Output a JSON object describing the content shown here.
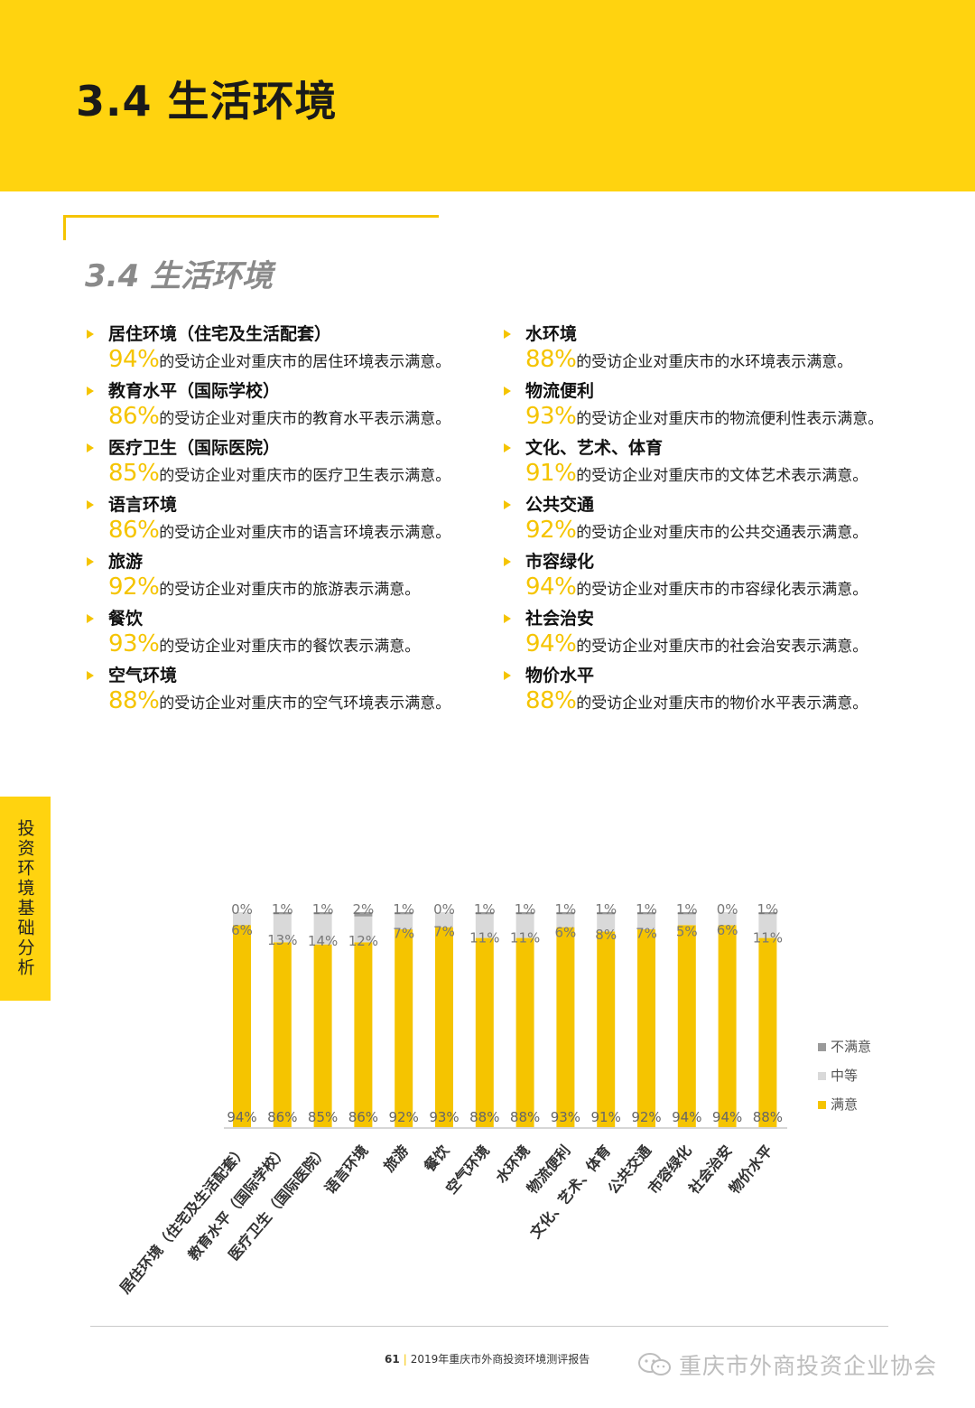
{
  "header": {
    "title": "3.4 生活环境"
  },
  "section": {
    "title": "3.4 生活环境"
  },
  "side_tab": "投资环境基础分析",
  "items_left": [
    {
      "heading": "居住环境（住宅及生活配套）",
      "pct": "94%",
      "text": "的受访企业对重庆市的居住环境表示满意。"
    },
    {
      "heading": "教育水平（国际学校）",
      "pct": "86%",
      "text": "的受访企业对重庆市的教育水平表示满意。"
    },
    {
      "heading": "医疗卫生（国际医院）",
      "pct": "85%",
      "text": "的受访企业对重庆市的医疗卫生表示满意。"
    },
    {
      "heading": "语言环境",
      "pct": "86%",
      "text": "的受访企业对重庆市的语言环境表示满意。"
    },
    {
      "heading": "旅游",
      "pct": "92%",
      "text": "的受访企业对重庆市的旅游表示满意。"
    },
    {
      "heading": "餐饮",
      "pct": "93%",
      "text": "的受访企业对重庆市的餐饮表示满意。"
    },
    {
      "heading": "空气环境",
      "pct": "88%",
      "text": "的受访企业对重庆市的空气环境表示满意。"
    }
  ],
  "items_right": [
    {
      "heading": "水环境",
      "pct": "88%",
      "text": "的受访企业对重庆市的水环境表示满意。"
    },
    {
      "heading": "物流便利",
      "pct": "93%",
      "text": "的受访企业对重庆市的物流便利性表示满意。"
    },
    {
      "heading": "文化、艺术、体育",
      "pct": "91%",
      "text": "的受访企业对重庆市的文体艺术表示满意。"
    },
    {
      "heading": "公共交通",
      "pct": "92%",
      "text": "的受访企业对重庆市的公共交通表示满意。"
    },
    {
      "heading": "市容绿化",
      "pct": "94%",
      "text": "的受访企业对重庆市的市容绿化表示满意。"
    },
    {
      "heading": "社会治安",
      "pct": "94%",
      "text": "的受访企业对重庆市的社会治安表示满意。"
    },
    {
      "heading": "物价水平",
      "pct": "88%",
      "text": "的受访企业对重庆市的物价水平表示满意。"
    }
  ],
  "chart_data": {
    "type": "bar",
    "stacked": true,
    "categories": [
      "居住环境（住宅及生活配套）",
      "教育水平（国际学校）",
      "医疗卫生（国际医院）",
      "语言环境",
      "旅游",
      "餐饮",
      "空气环境",
      "水环境",
      "物流便利",
      "文化、艺术、体育",
      "公共交通",
      "市容绿化",
      "社会治安",
      "物价水平"
    ],
    "series": [
      {
        "name": "满意",
        "color": "#f5c400",
        "values": [
          94,
          86,
          85,
          86,
          92,
          93,
          88,
          88,
          93,
          91,
          92,
          94,
          94,
          88
        ]
      },
      {
        "name": "中等",
        "color": "#d9d9d9",
        "values": [
          6,
          13,
          14,
          12,
          7,
          7,
          11,
          11,
          6,
          8,
          7,
          5,
          6,
          11
        ]
      },
      {
        "name": "不满意",
        "color": "#9a9a9a",
        "values": [
          0,
          1,
          1,
          2,
          1,
          0,
          1,
          1,
          1,
          1,
          1,
          1,
          0,
          1
        ]
      }
    ],
    "unit": "%",
    "ylim": [
      0,
      100
    ],
    "legend": "right",
    "grid": false
  },
  "footer": {
    "page": "61",
    "report": "2019年重庆市外商投资环境测评报告",
    "watermark": "重庆市外商投资企业协会"
  },
  "colors": {
    "brand_yellow": "#ffd30f",
    "bar_yellow": "#f5c400",
    "mid_gray": "#d9d9d9",
    "dark_gray": "#9a9a9a"
  }
}
